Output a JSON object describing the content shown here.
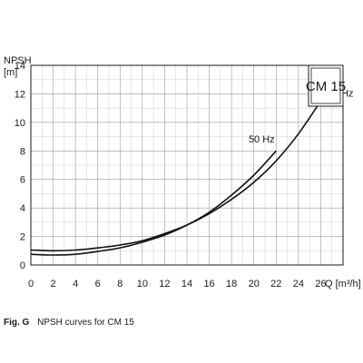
{
  "caption": {
    "figure_label": "Fig. G",
    "text": "NPSH curves for CM 15"
  },
  "chart_data": {
    "type": "line",
    "title": "CM 15",
    "ylabel": "NPSH",
    "ylabel_unit": "[m]",
    "xlabel": "Q [m³/h]",
    "xlim": [
      0,
      28
    ],
    "ylim": [
      0,
      14
    ],
    "x_ticks": [
      0,
      2,
      4,
      6,
      8,
      10,
      12,
      14,
      16,
      18,
      20,
      22,
      24,
      26
    ],
    "y_ticks": [
      0,
      2,
      4,
      6,
      8,
      10,
      12,
      14
    ],
    "grid": true,
    "series": [
      {
        "name": "50 Hz",
        "x": [
          0,
          2,
          4,
          6,
          8,
          10,
          12,
          14,
          16,
          18,
          20,
          22
        ],
        "y": [
          0.75,
          0.7,
          0.75,
          0.95,
          1.2,
          1.6,
          2.1,
          2.8,
          3.7,
          4.9,
          6.3,
          8.0
        ]
      },
      {
        "name": "60 Hz",
        "x": [
          0,
          2,
          4,
          6,
          8,
          10,
          12,
          14,
          16,
          18,
          20,
          22,
          24,
          26
        ],
        "y": [
          1.05,
          1.0,
          1.05,
          1.2,
          1.4,
          1.7,
          2.2,
          2.8,
          3.6,
          4.6,
          5.8,
          7.3,
          9.2,
          11.5
        ]
      }
    ]
  }
}
